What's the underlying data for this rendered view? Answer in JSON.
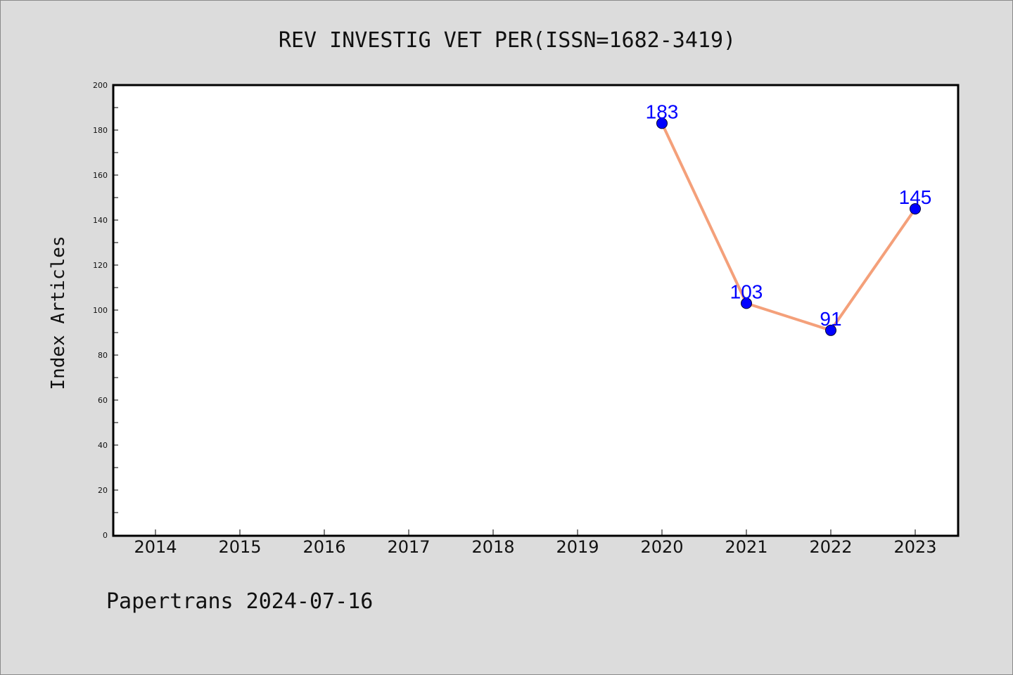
{
  "chart_data": {
    "type": "line",
    "title": "REV INVESTIG VET PER(ISSN=1682-3419)",
    "xlabel": "",
    "ylabel": "Index Articles",
    "categories": [
      "2014",
      "2015",
      "2016",
      "2017",
      "2018",
      "2019",
      "2020",
      "2021",
      "2022",
      "2023"
    ],
    "y_ticks": [
      "0",
      "20",
      "40",
      "60",
      "80",
      "100",
      "120",
      "140",
      "160",
      "180",
      "200"
    ],
    "ylim": [
      0,
      200
    ],
    "series": [
      {
        "x": [
          "2020",
          "2021",
          "2022",
          "2023"
        ],
        "values": [
          183,
          103,
          91,
          145
        ],
        "data_labels": [
          "183",
          "103",
          "91",
          "145"
        ]
      }
    ],
    "grid": false,
    "legend": "none",
    "colors": {
      "line": "#f4a07a",
      "marker": "#0000ff",
      "label": "#0000ff",
      "plot_background": "#ffffff",
      "figure_background": "#dcdcdc"
    }
  },
  "footer": {
    "text": "Papertrans 2024-07-16"
  }
}
